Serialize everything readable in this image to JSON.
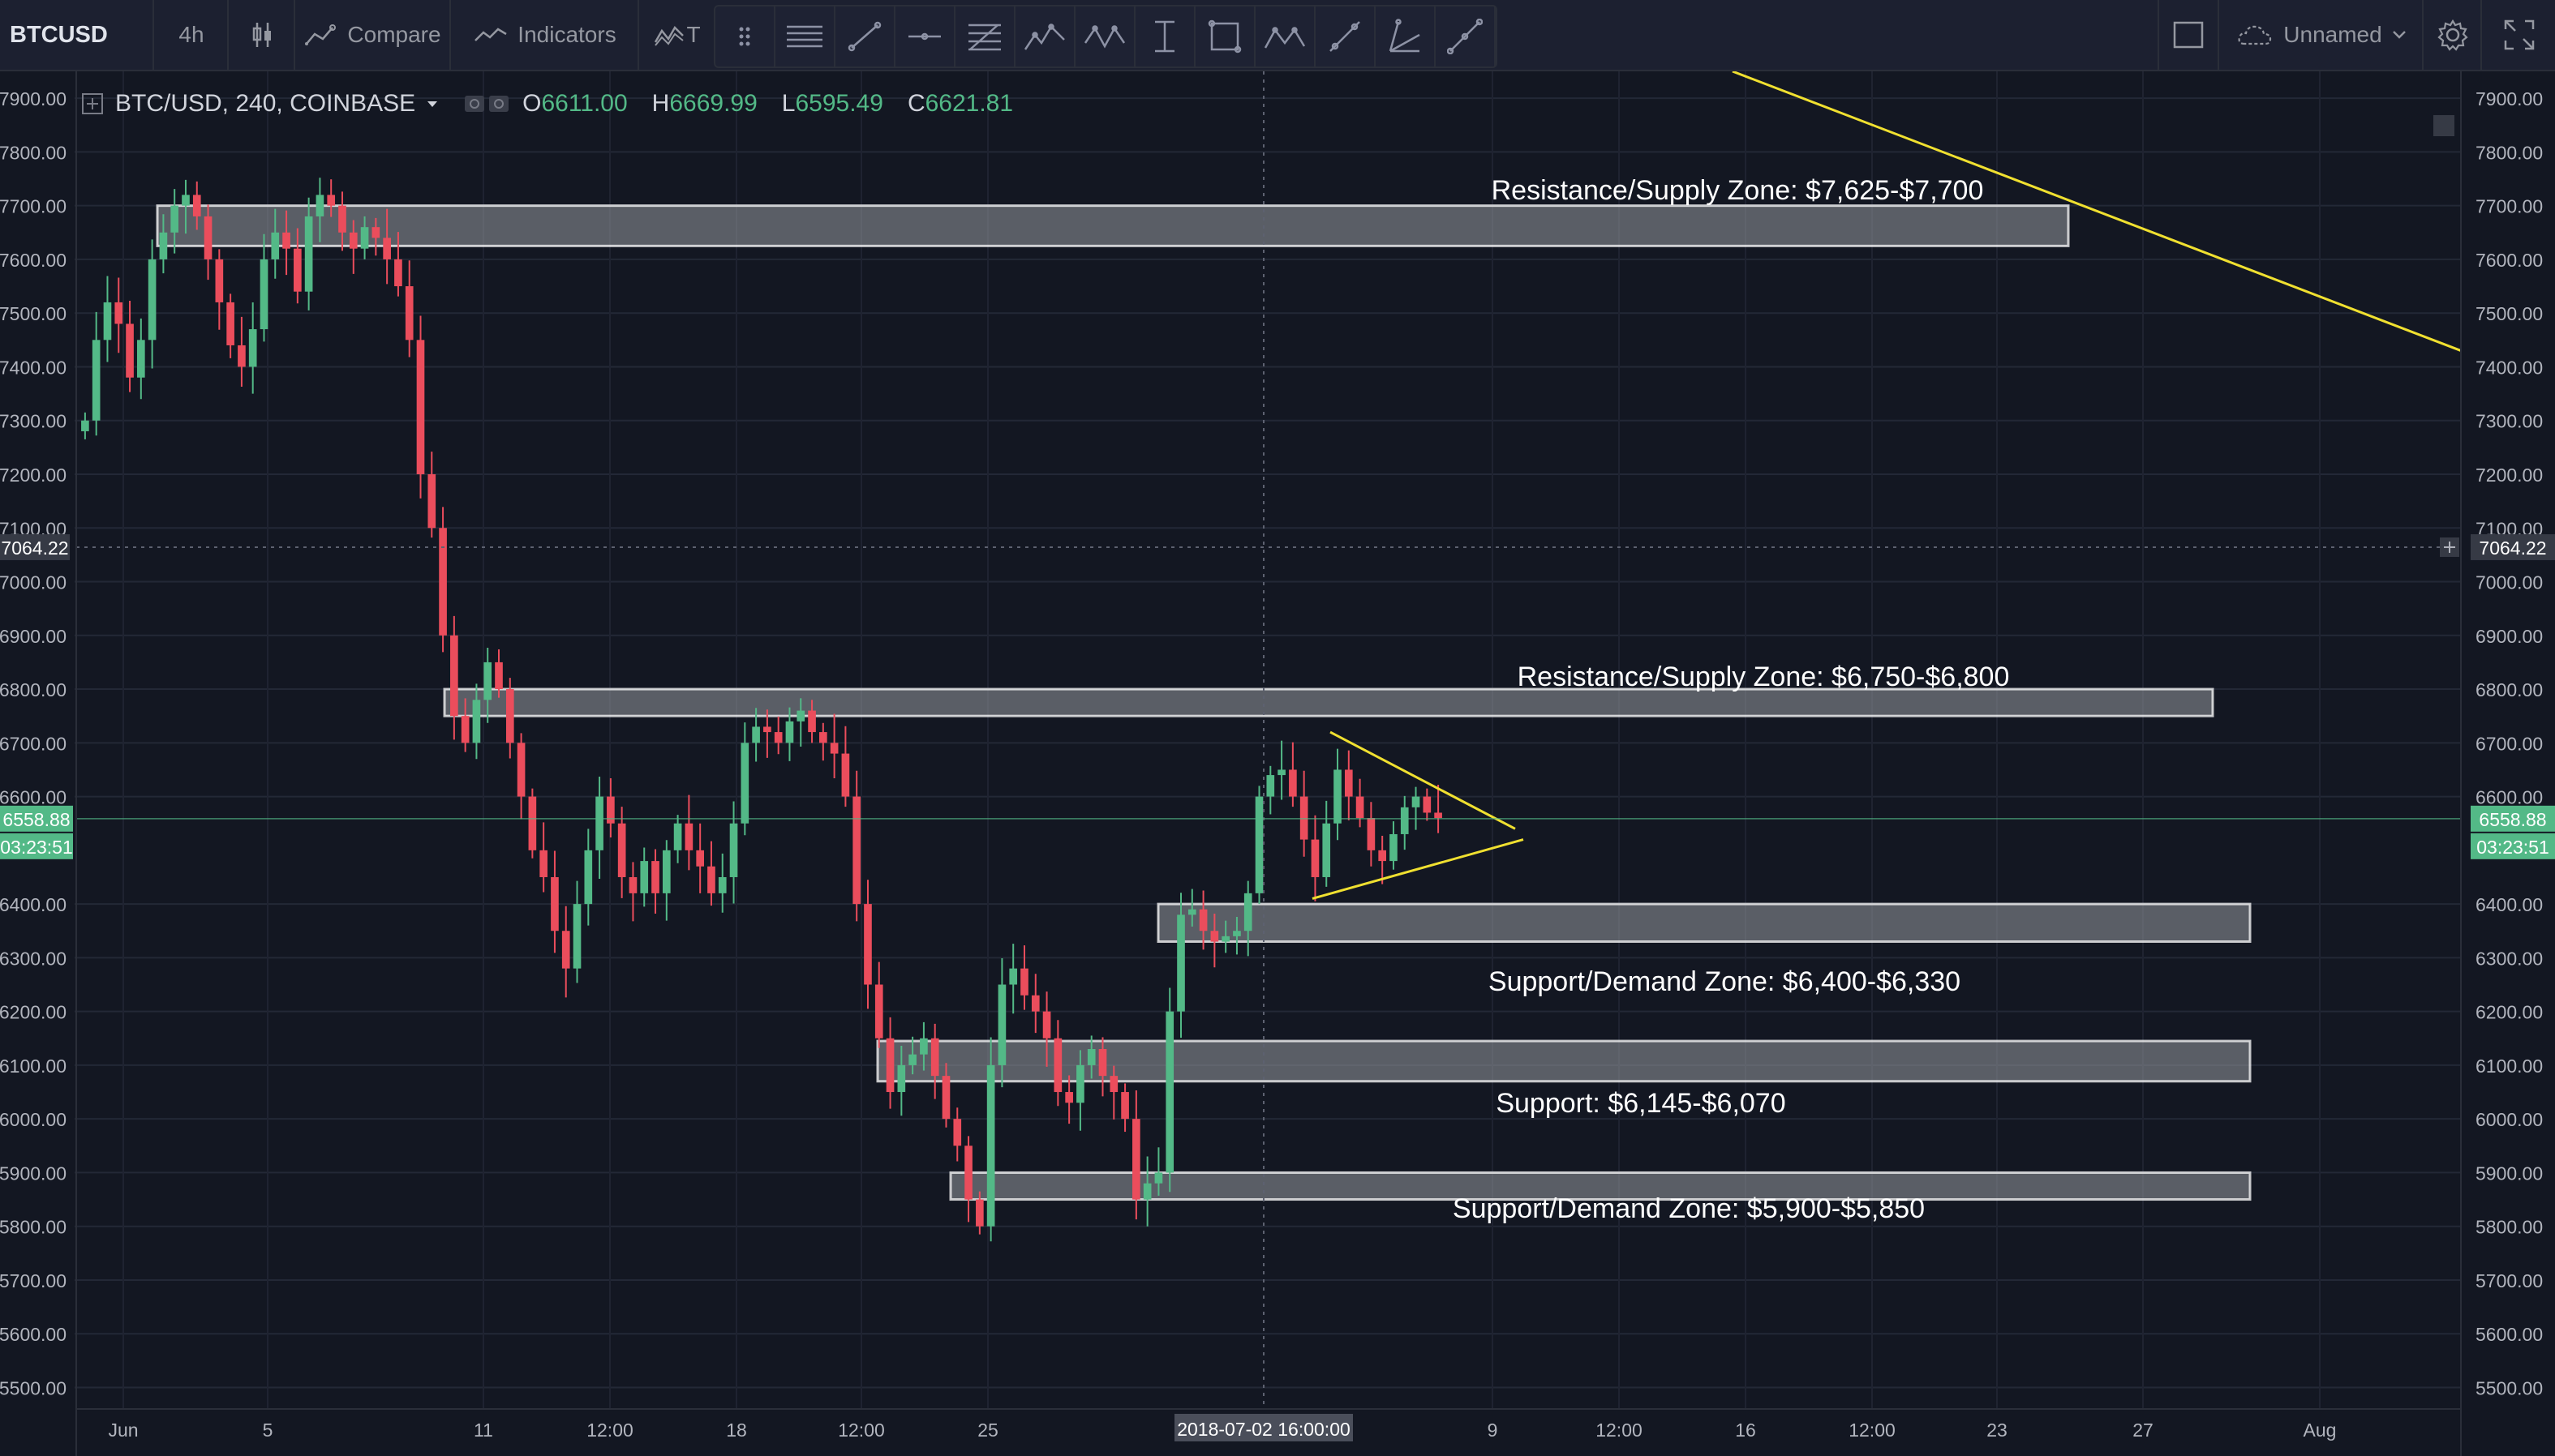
{
  "toolbar": {
    "symbol": "BTCUSD",
    "interval": "4h",
    "compare": "Compare",
    "indicators": "Indicators",
    "templates_short": "T",
    "layout_name": "Unnamed"
  },
  "legend": {
    "title": "BTC/USD, 240, COINBASE",
    "open_label": "O",
    "open": "6611.00",
    "high_label": "H",
    "high": "6669.99",
    "low_label": "L",
    "low": "6595.49",
    "close_label": "C",
    "close": "6621.81"
  },
  "colors": {
    "background": "#131722",
    "up": "#53b987",
    "down": "#eb4d5c",
    "trendline": "#f0e030",
    "zone_fill": "#8a8d95",
    "zone_border": "#ffffff"
  },
  "chart_data": {
    "type": "candlestick",
    "ylim": [
      5460,
      7950
    ],
    "y_ticks": [
      "7900.00",
      "7800.00",
      "7700.00",
      "7600.00",
      "7500.00",
      "7400.00",
      "7300.00",
      "7200.00",
      "7100.00",
      "7000.00",
      "6900.00",
      "6800.00",
      "6700.00",
      "6600.00",
      "6400.00",
      "6300.00",
      "6200.00",
      "6100.00",
      "6000.00",
      "5900.00",
      "5800.00",
      "5700.00",
      "5600.00",
      "5500.00"
    ],
    "x_ticks": [
      "Jun",
      "5",
      "11",
      "12:00",
      "18",
      "12:00",
      "25",
      "9",
      "12:00",
      "16",
      "12:00",
      "23",
      "27",
      "Aug"
    ],
    "crosshair": {
      "price": "7064.22",
      "time": "2018-07-02 16:00:00"
    },
    "last_price": {
      "price": "6558.88",
      "countdown": "03:23:51"
    },
    "zones": [
      {
        "label": "Resistance/Supply Zone: $7,625-$7,700",
        "low": 7625,
        "high": 7700
      },
      {
        "label": "Resistance/Supply Zone: $6,750-$6,800",
        "low": 6750,
        "high": 6800
      },
      {
        "label": "Support/Demand Zone: $6,400-$6,330",
        "low": 6330,
        "high": 6400
      },
      {
        "label": "Support: $6,145-$6,070",
        "low": 6070,
        "high": 6145
      },
      {
        "label": "Support/Demand Zone: $5,900-$5,850",
        "low": 5850,
        "high": 5900
      }
    ],
    "close_path": [
      7300,
      7450,
      7520,
      7480,
      7380,
      7450,
      7600,
      7650,
      7700,
      7720,
      7680,
      7600,
      7520,
      7440,
      7400,
      7470,
      7600,
      7650,
      7620,
      7540,
      7680,
      7720,
      7700,
      7650,
      7620,
      7660,
      7640,
      7600,
      7550,
      7450,
      7200,
      7100,
      6900,
      6750,
      6700,
      6780,
      6850,
      6800,
      6700,
      6600,
      6500,
      6450,
      6350,
      6280,
      6400,
      6500,
      6600,
      6550,
      6450,
      6420,
      6480,
      6420,
      6500,
      6550,
      6500,
      6470,
      6420,
      6450,
      6550,
      6700,
      6730,
      6720,
      6700,
      6740,
      6760,
      6720,
      6700,
      6680,
      6600,
      6400,
      6250,
      6150,
      6050,
      6100,
      6120,
      6150,
      6080,
      6000,
      5950,
      5850,
      5800,
      6100,
      6250,
      6280,
      6230,
      6200,
      6150,
      6050,
      6030,
      6100,
      6130,
      6080,
      6050,
      6000,
      5850,
      5880,
      5900,
      6200,
      6380,
      6390,
      6350,
      6330,
      6340,
      6350,
      6420,
      6600,
      6640,
      6650,
      6600,
      6520,
      6450,
      6550,
      6650,
      6600,
      6560,
      6500,
      6480,
      6530,
      6580,
      6600,
      6570,
      6560
    ],
    "triangle": {
      "upper": [
        6720,
        6550
      ],
      "lower": [
        6410,
        6520
      ],
      "apex": 6540
    },
    "descending_trendline": [
      7950,
      7430
    ]
  }
}
